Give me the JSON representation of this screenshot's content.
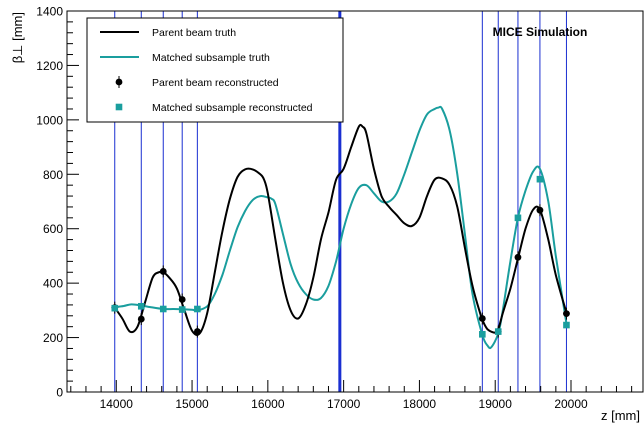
{
  "chart_data": {
    "type": "line",
    "title": "",
    "annotation": "MICE Simulation",
    "xlabel": "z [mm]",
    "ylabel": "β⊥ [mm]",
    "xlim": [
      13350,
      20950
    ],
    "ylim": [
      0,
      1400
    ],
    "xticks": [
      14000,
      15000,
      16000,
      17000,
      18000,
      19000,
      20000
    ],
    "yticks": [
      0,
      200,
      400,
      600,
      800,
      1000,
      1200,
      1400
    ],
    "grid": false,
    "legend_position": "top-left",
    "colors": {
      "parent": "#000000",
      "matched": "#1a9e9e",
      "stations": "#1a2fd1"
    },
    "station_lines": [
      13980,
      14330,
      14620,
      14870,
      15070,
      18830,
      19040,
      19300,
      19590,
      19940
    ],
    "thick_line": 16950,
    "series": [
      {
        "name": "Parent beam truth",
        "kind": "line",
        "color": "#000000",
        "x": [
          13980,
          14080,
          14180,
          14280,
          14380,
          14480,
          14560,
          14620,
          14700,
          14800,
          14900,
          15000,
          15100,
          15200,
          15300,
          15400,
          15500,
          15600,
          15700,
          15800,
          15900,
          15950,
          16000,
          16100,
          16200,
          16300,
          16400,
          16500,
          16600,
          16700,
          16800,
          16900,
          17000,
          17100,
          17200,
          17250,
          17300,
          17400,
          17500,
          17600,
          17700,
          17800,
          17900,
          18000,
          18100,
          18200,
          18300,
          18400,
          18500,
          18600,
          18700,
          18800,
          18830,
          18900,
          19000,
          19040,
          19100,
          19200,
          19300,
          19400,
          19500,
          19590,
          19700,
          19800,
          19940
        ],
        "y": [
          310,
          270,
          222,
          240,
          330,
          420,
          440,
          440,
          420,
          380,
          300,
          225,
          215,
          290,
          440,
          590,
          710,
          790,
          818,
          818,
          800,
          780,
          730,
          560,
          400,
          300,
          270,
          320,
          420,
          560,
          660,
          780,
          820,
          900,
          975,
          975,
          950,
          820,
          720,
          680,
          650,
          620,
          610,
          640,
          720,
          780,
          785,
          760,
          680,
          530,
          390,
          290,
          265,
          230,
          218,
          230,
          290,
          380,
          490,
          600,
          670,
          670,
          560,
          430,
          290
        ]
      },
      {
        "name": "Matched subsample truth",
        "kind": "line",
        "color": "#1a9e9e",
        "x": [
          13980,
          14100,
          14200,
          14330,
          14450,
          14620,
          14750,
          14870,
          15000,
          15070,
          15200,
          15300,
          15400,
          15500,
          15600,
          15700,
          15800,
          15900,
          16000,
          16050,
          16100,
          16200,
          16300,
          16400,
          16500,
          16600,
          16700,
          16800,
          16900,
          17000,
          17100,
          17200,
          17300,
          17400,
          17500,
          17600,
          17700,
          17800,
          17900,
          18000,
          18100,
          18200,
          18250,
          18300,
          18400,
          18500,
          18600,
          18700,
          18830,
          18900,
          18950,
          19040,
          19100,
          19200,
          19300,
          19400,
          19500,
          19590,
          19700,
          19800,
          19940
        ],
        "y": [
          312,
          316,
          322,
          318,
          312,
          305,
          305,
          304,
          302,
          300,
          315,
          360,
          430,
          520,
          605,
          665,
          705,
          720,
          715,
          710,
          690,
          580,
          470,
          400,
          360,
          340,
          345,
          390,
          480,
          600,
          690,
          750,
          760,
          730,
          700,
          700,
          730,
          800,
          880,
          960,
          1020,
          1040,
          1045,
          1040,
          960,
          800,
          580,
          360,
          210,
          170,
          165,
          215,
          300,
          480,
          640,
          740,
          810,
          820,
          700,
          500,
          250
        ]
      },
      {
        "name": "Parent beam reconstructed",
        "kind": "markers",
        "marker": "circle",
        "color": "#000000",
        "x": [
          13980,
          14330,
          14620,
          14870,
          15070,
          18830,
          19040,
          19300,
          19590,
          19940
        ],
        "y": [
          310,
          268,
          443,
          340,
          222,
          270,
          222,
          495,
          668,
          288
        ]
      },
      {
        "name": "Matched subsample reconstructed",
        "kind": "markers",
        "marker": "square",
        "color": "#1a9e9e",
        "x": [
          13980,
          14330,
          14620,
          14870,
          15070,
          18830,
          19040,
          19300,
          19590,
          19940
        ],
        "y": [
          308,
          315,
          305,
          303,
          305,
          212,
          222,
          640,
          782,
          246
        ]
      }
    ]
  }
}
